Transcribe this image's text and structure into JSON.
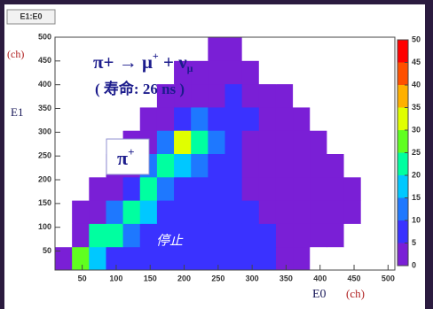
{
  "chart_data": {
    "type": "heatmap",
    "title": "E1:E0",
    "xlabel": "E0",
    "xunit": "(ch)",
    "ylabel": "E1",
    "yunit": "(ch)",
    "xlim": [
      10,
      510
    ],
    "ylim": [
      10,
      500
    ],
    "xticks": [
      50,
      100,
      150,
      200,
      250,
      300,
      350,
      400,
      450,
      500
    ],
    "yticks": [
      50,
      100,
      150,
      200,
      250,
      300,
      350,
      400,
      450,
      500
    ],
    "zlim": [
      0,
      50
    ],
    "zticks": [
      0,
      5,
      10,
      15,
      20,
      25,
      30,
      35,
      40,
      45,
      50
    ],
    "palette": [
      "#ffffff",
      "#7a1fd6",
      "#3a32ff",
      "#1e78ff",
      "#00c8ff",
      "#00ffa0",
      "#60ff20",
      "#e0ff00",
      "#ffb000",
      "#ff5000",
      "#ff0000"
    ],
    "x_bins": [
      10,
      35,
      60,
      85,
      110,
      135,
      160,
      185,
      210,
      235,
      260,
      285,
      310,
      335,
      360,
      385,
      410,
      435,
      460,
      485,
      510
    ],
    "y_bins": [
      10,
      59,
      108,
      157,
      206,
      255,
      304,
      353,
      402,
      451,
      500
    ],
    "z": [
      [
        1,
        25,
        15,
        8,
        6,
        8,
        6,
        6,
        6,
        6,
        7,
        7,
        6,
        3,
        1,
        0,
        0,
        0,
        0,
        0
      ],
      [
        0,
        3,
        20,
        22,
        12,
        6,
        5,
        5,
        5,
        6,
        7,
        7,
        6,
        4,
        2,
        1,
        1,
        0,
        0,
        0
      ],
      [
        0,
        1,
        3,
        10,
        24,
        15,
        6,
        5,
        5,
        6,
        7,
        6,
        4,
        3,
        2,
        2,
        1,
        1,
        0,
        0
      ],
      [
        0,
        0,
        1,
        3,
        8,
        22,
        14,
        6,
        6,
        7,
        6,
        4,
        3,
        3,
        3,
        2,
        2,
        1,
        0,
        0
      ],
      [
        0,
        0,
        0,
        1,
        3,
        10,
        22,
        16,
        10,
        7,
        5,
        4,
        4,
        3,
        3,
        2,
        1,
        0,
        0,
        0
      ],
      [
        0,
        0,
        0,
        0,
        1,
        3,
        12,
        30,
        22,
        10,
        5,
        4,
        4,
        3,
        2,
        1,
        0,
        0,
        0,
        0
      ],
      [
        0,
        0,
        0,
        0,
        0,
        1,
        3,
        8,
        10,
        6,
        5,
        5,
        4,
        3,
        1,
        0,
        0,
        0,
        0,
        0
      ],
      [
        0,
        0,
        0,
        0,
        0,
        0,
        1,
        2,
        3,
        4,
        5,
        4,
        2,
        1,
        0,
        0,
        0,
        0,
        0,
        0
      ],
      [
        0,
        0,
        0,
        0,
        0,
        0,
        0,
        1,
        1,
        2,
        2,
        1,
        0,
        0,
        0,
        0,
        0,
        0,
        0,
        0
      ],
      [
        0,
        0,
        0,
        0,
        0,
        0,
        0,
        0,
        0,
        1,
        1,
        0,
        0,
        0,
        0,
        0,
        0,
        0,
        0,
        0
      ]
    ],
    "annotations": {
      "decay": [
        "π+ → μ",
        "+",
        " + ν",
        "μ"
      ],
      "lifetime": "( 寿命: 26 ns )",
      "pion": "π",
      "pion_charge": "+",
      "stop": "停止"
    }
  }
}
